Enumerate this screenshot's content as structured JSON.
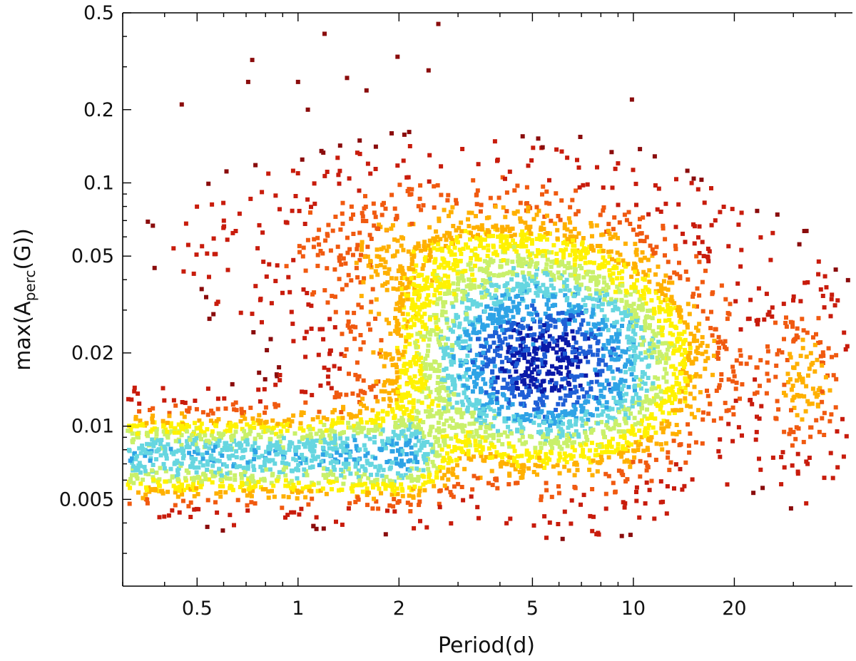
{
  "chart_data": {
    "type": "heatmap",
    "title": "",
    "xlabel": "Period(d)",
    "ylabel_parts": {
      "pre": "max(A",
      "sub": "perc",
      "post": "(G))"
    },
    "x_scale": "log",
    "y_scale": "log",
    "xlim": [
      0.3,
      45
    ],
    "ylim": [
      0.0022,
      0.5
    ],
    "x_ticks": [
      {
        "value": 0.5,
        "label": "0.5"
      },
      {
        "value": 1,
        "label": "1"
      },
      {
        "value": 2,
        "label": "2"
      },
      {
        "value": 5,
        "label": "5"
      },
      {
        "value": 10,
        "label": "10"
      },
      {
        "value": 20,
        "label": "20"
      }
    ],
    "y_ticks": [
      {
        "value": 0.005,
        "label": "0.005"
      },
      {
        "value": 0.01,
        "label": "0.01"
      },
      {
        "value": 0.02,
        "label": "0.02"
      },
      {
        "value": 0.05,
        "label": "0.05"
      },
      {
        "value": 0.1,
        "label": "0.1"
      },
      {
        "value": 0.2,
        "label": "0.2"
      },
      {
        "value": 0.5,
        "label": "0.5"
      }
    ],
    "grid": false,
    "legend": "none",
    "colormap": [
      "#0a1aa8",
      "#1f5fd6",
      "#2ea3e6",
      "#66d6e0",
      "#c9f06a",
      "#fff200",
      "#ffb000",
      "#f05a10",
      "#c81c0c",
      "#8a0c0c"
    ],
    "density_components": [
      {
        "name": "main clump",
        "period_center": 5.5,
        "amplitude_center": 0.018,
        "period_spread_dex": 0.27,
        "amplitude_spread_dex": 0.26,
        "relative_peak": 1.0
      },
      {
        "name": "short-period band",
        "period_range": [
          0.3,
          2.0
        ],
        "amplitude_center": 0.0075,
        "amplitude_spread_dex": 0.11,
        "relative_peak": 0.62
      },
      {
        "name": "long-period group",
        "period_center": 33,
        "amplitude_center": 0.015,
        "period_spread_dex": 0.08,
        "amplitude_spread_dex": 0.22,
        "relative_peak": 0.22
      },
      {
        "name": "upper halo",
        "period_center": 3.0,
        "amplitude_center": 0.055,
        "period_spread_dex": 0.4,
        "amplitude_spread_dex": 0.2,
        "relative_peak": 0.2
      }
    ],
    "outliers": [
      [
        0.45,
        0.21
      ],
      [
        0.73,
        0.32
      ],
      [
        0.71,
        0.26
      ],
      [
        1.0,
        0.26
      ],
      [
        1.2,
        0.41
      ],
      [
        1.4,
        0.27
      ],
      [
        1.98,
        0.33
      ],
      [
        2.45,
        0.29
      ],
      [
        2.62,
        0.45
      ],
      [
        1.6,
        0.24
      ],
      [
        9.9,
        0.22
      ],
      [
        1.07,
        0.2
      ]
    ]
  }
}
